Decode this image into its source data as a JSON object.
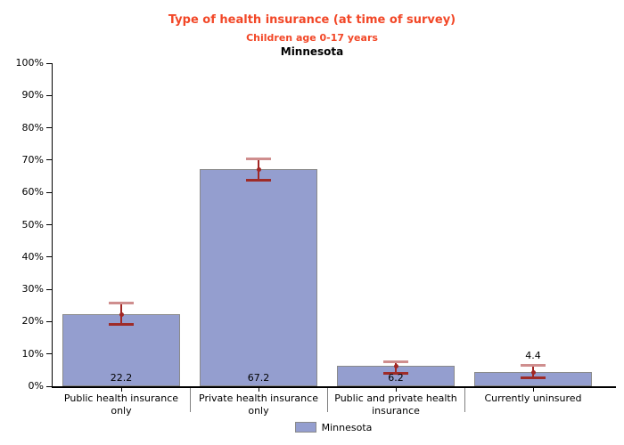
{
  "chart": {
    "title": "Type of health insurance (at time of survey)",
    "subtitle": "Children age 0-17 years",
    "region": "Minnesota",
    "title_color": "#F24727",
    "region_color": "#000000"
  },
  "legend": {
    "label": "Minnesota",
    "swatch_color": "#949ECF",
    "swatch_border": "#8A8A8A",
    "position": "bottom-center"
  },
  "chart_data": {
    "type": "bar",
    "title": "Type of health insurance (at time of survey)",
    "subtitle": "Children age 0-17 years",
    "region": "Minnesota",
    "categories": [
      "Public health insurance only",
      "Private health insurance only",
      "Public and private health insurance",
      "Currently uninsured"
    ],
    "series": [
      {
        "name": "Minnesota",
        "values": [
          22.2,
          67.2,
          6.2,
          4.4
        ]
      }
    ],
    "value_labels": [
      "22.2",
      "67.2",
      "6.2",
      "4.4"
    ],
    "value_label_position": [
      "inside-bottom",
      "inside-bottom",
      "inside-bottom",
      "above"
    ],
    "error_bars": {
      "low": [
        18.9,
        63.5,
        3.8,
        2.4
      ],
      "high": [
        26.0,
        70.5,
        7.8,
        6.6
      ]
    },
    "ylim": [
      0,
      100
    ],
    "ytick_step": 10,
    "ytick_suffix": "%",
    "grid": false,
    "legend_position": "bottom",
    "bar_color": "#949ECF",
    "bar_border_color": "#8A8A8A",
    "error_color": "#A22623",
    "error_cap_top_color": "#CF8E8E",
    "error_cap_bottom_color": "#9E2B28",
    "axis_color": "#000000"
  }
}
